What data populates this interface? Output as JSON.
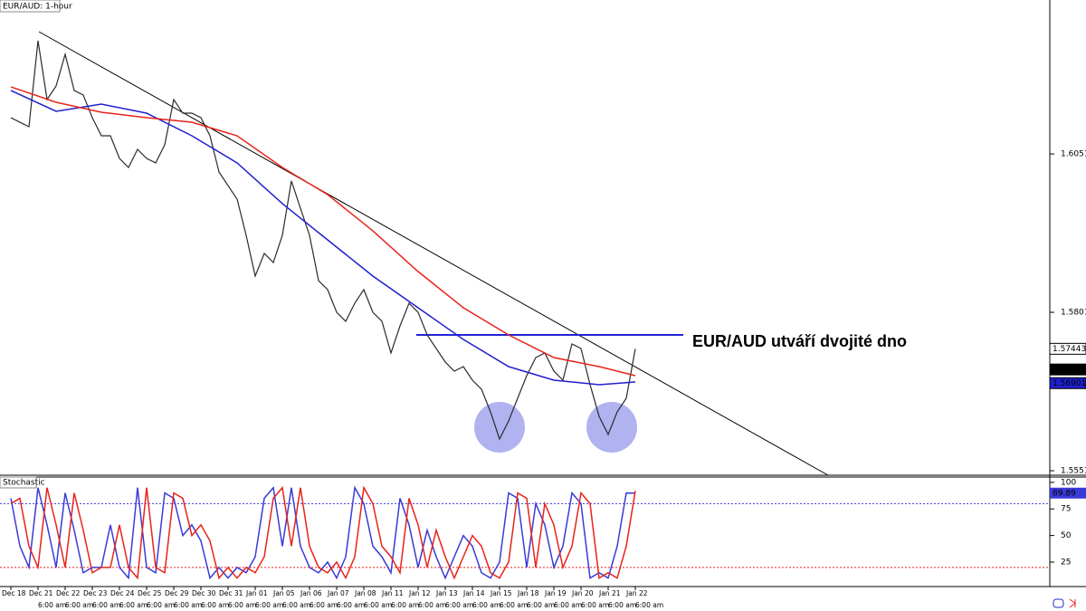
{
  "chart_data": [
    {
      "type": "line",
      "title": "EUR/AUD: 1-hour",
      "categories": [
        "Dec 18",
        null,
        null,
        "Dec 21",
        null,
        null,
        "Dec 22",
        null,
        null,
        "Dec 23",
        null,
        null,
        "Dec 24",
        null,
        null,
        "Dec 25",
        null,
        null,
        "Dec 29",
        null,
        null,
        "Dec 30",
        null,
        null,
        "Dec 31",
        null,
        null,
        "Jan 01",
        null,
        null,
        "Jan 05",
        null,
        null,
        "Jan 06",
        null,
        null,
        "Jan 07",
        null,
        null,
        "Jan 08",
        null,
        null,
        "Jan 11",
        null,
        null,
        "Jan 12",
        null,
        null,
        "Jan 13",
        null,
        null,
        "Jan 14",
        null,
        null,
        "Jan 15",
        null,
        null,
        "Jan 18",
        null,
        null,
        "Jan 19",
        null,
        null,
        "Jan 20",
        null,
        null,
        "Jan 21",
        null,
        null,
        "Jan 22",
        null,
        null
      ],
      "time_labels": [
        null,
        null,
        null,
        null,
        "6:00 am",
        null,
        null,
        "6:00 am",
        null,
        null,
        "6:00 am",
        null,
        null,
        "6:00 am",
        null,
        null,
        "6:00 am",
        null,
        null,
        "6:00 am",
        null,
        null,
        "6:00 am",
        null,
        null,
        "6:00 am",
        null,
        null,
        "6:00 am",
        null,
        null,
        "6:00 am",
        null,
        null,
        "6:00 am",
        null,
        null,
        "6:00 am",
        null,
        null,
        "6:00 am",
        null,
        null,
        "6:00 am",
        null,
        null,
        "6:00 am",
        null,
        null,
        "6:00 am",
        null,
        null,
        "6:00 am",
        null,
        null,
        "6:00 am",
        null,
        null,
        "6:00 am",
        null,
        null,
        "6:00 am",
        null,
        null,
        "6:00 am",
        null,
        null,
        "6:00 am",
        null,
        null,
        "6:00 am",
        null
      ],
      "series": [
        {
          "color": "#2b2b2b",
          "values": [
            1.61091,
            1.61019,
            1.60948,
            1.62305,
            1.61377,
            1.61591,
            1.62091,
            1.6152,
            1.61448,
            1.61091,
            1.60805,
            1.60805,
            1.60448,
            1.60305,
            1.60591,
            1.60448,
            1.60377,
            1.60662,
            1.61377,
            1.61162,
            1.61162,
            1.61091,
            1.60805,
            1.60234,
            1.60019,
            1.59805,
            1.59234,
            1.58591,
            1.58948,
            1.58805,
            1.59234,
            1.60091,
            1.59662,
            1.59234,
            1.58519,
            1.58377,
            1.58019,
            1.57877,
            1.58162,
            1.58377,
            1.58019,
            1.57877,
            1.57377,
            1.57805,
            1.58162,
            1.58019,
            1.57662,
            1.57448,
            1.57234,
            1.57091,
            1.57162,
            1.56948,
            1.56805,
            1.56448,
            1.56019,
            1.56305,
            1.56662,
            1.57019,
            1.57305,
            1.57377,
            1.57091,
            1.56948,
            1.5752,
            1.57448,
            1.56877,
            1.56377,
            1.56091,
            1.56448,
            1.56662,
            1.57443,
            null,
            null
          ]
        },
        {
          "color": "#1f1fcf",
          "x": [
            0,
            5,
            10,
            15,
            20,
            25,
            30,
            35,
            40,
            45,
            50,
            55,
            60,
            65,
            69
          ],
          "values": [
            1.6152,
            1.61191,
            1.61305,
            1.61162,
            1.60805,
            1.60377,
            1.59734,
            1.59162,
            1.58591,
            1.58091,
            1.57591,
            1.57162,
            1.56948,
            1.56877,
            1.5692
          ]
        },
        {
          "color": "#e8231a",
          "x": [
            0,
            5,
            10,
            15,
            20,
            25,
            30,
            35,
            40,
            45,
            50,
            55,
            60,
            65,
            69
          ],
          "values": [
            1.61577,
            1.61334,
            1.61177,
            1.61091,
            1.61019,
            1.60805,
            1.60305,
            1.59877,
            1.59305,
            1.58662,
            1.58091,
            1.57662,
            1.57305,
            1.57162,
            1.57019
          ]
        }
      ],
      "ylim": [
        1.55448,
        1.62948
      ],
      "yticks": [
        1.55519,
        1.58019,
        1.60519
      ],
      "price_tags": [
        {
          "value": 1.57443,
          "color": "#ffffff"
        },
        {
          "value": 1.57117,
          "color": "#000000"
        },
        {
          "value": 1.56901,
          "color": "#1f1fcf"
        }
      ],
      "resistance": 1.57662,
      "resistance_color": "#2323d8",
      "annotation": "EUR/AUD utváří dvojité dno"
    },
    {
      "type": "line",
      "title": "Stochastic",
      "series": [
        {
          "color": "#3a3ad8",
          "values": [
            85,
            40,
            20,
            95,
            60,
            20,
            90,
            55,
            15,
            20,
            20,
            60,
            20,
            10,
            95,
            20,
            15,
            90,
            85,
            50,
            60,
            45,
            10,
            20,
            10,
            20,
            15,
            30,
            85,
            95,
            40,
            95,
            40,
            20,
            15,
            25,
            10,
            30,
            95,
            80,
            40,
            30,
            15,
            85,
            60,
            20,
            55,
            30,
            10,
            30,
            50,
            40,
            15,
            10,
            25,
            90,
            85,
            20,
            80,
            60,
            20,
            40,
            90,
            80,
            10,
            15,
            10,
            40,
            90,
            89.89,
            null,
            null
          ]
        },
        {
          "color": "#e8231a",
          "values": [
            80,
            85,
            40,
            20,
            95,
            60,
            20,
            90,
            55,
            15,
            20,
            20,
            60,
            20,
            10,
            95,
            20,
            15,
            90,
            85,
            50,
            60,
            45,
            10,
            20,
            10,
            20,
            15,
            30,
            85,
            95,
            40,
            95,
            40,
            20,
            15,
            25,
            10,
            30,
            95,
            80,
            40,
            30,
            15,
            85,
            60,
            20,
            55,
            30,
            10,
            30,
            50,
            40,
            15,
            10,
            25,
            90,
            85,
            20,
            80,
            60,
            20,
            40,
            90,
            80,
            10,
            15,
            10,
            40,
            92,
            null,
            null
          ]
        }
      ],
      "ylim": [
        2,
        105
      ],
      "yticks": [
        25,
        50,
        75,
        100
      ],
      "levels": [
        {
          "value": 80,
          "color": "#3a3ad8"
        },
        {
          "value": 20,
          "color": "#e8231a"
        }
      ]
    }
  ]
}
